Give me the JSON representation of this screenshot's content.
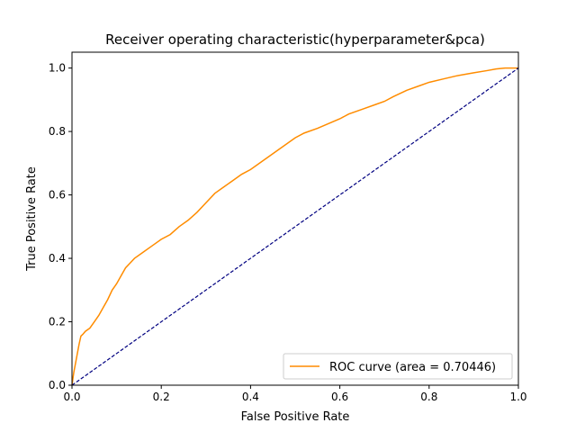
{
  "chart_data": {
    "type": "line",
    "title": "Receiver operating characteristic(hyperparameter&pca)",
    "xlabel": "False Positive Rate",
    "ylabel": "True Positive Rate",
    "xlim": [
      0.0,
      1.0
    ],
    "ylim": [
      0.0,
      1.05
    ],
    "xticks": [
      0.0,
      0.2,
      0.4,
      0.6,
      0.8,
      1.0
    ],
    "yticks": [
      0.0,
      0.2,
      0.4,
      0.6,
      0.8,
      1.0
    ],
    "xtick_labels": [
      "0.0",
      "0.2",
      "0.4",
      "0.6",
      "0.8",
      "1.0"
    ],
    "ytick_labels": [
      "0.0",
      "0.2",
      "0.4",
      "0.6",
      "0.8",
      "1.0"
    ],
    "grid": false,
    "legend_position": "lower-right",
    "series": [
      {
        "name": "ROC curve (area = 0.70446)",
        "color": "#ff8c00",
        "style": "solid",
        "x": [
          0.0,
          0.002,
          0.004,
          0.008,
          0.012,
          0.016,
          0.02,
          0.024,
          0.03,
          0.04,
          0.05,
          0.06,
          0.07,
          0.08,
          0.09,
          0.1,
          0.11,
          0.12,
          0.13,
          0.14,
          0.16,
          0.18,
          0.2,
          0.22,
          0.24,
          0.26,
          0.28,
          0.3,
          0.32,
          0.34,
          0.36,
          0.38,
          0.4,
          0.45,
          0.5,
          0.52,
          0.55,
          0.6,
          0.62,
          0.65,
          0.68,
          0.7,
          0.72,
          0.75,
          0.78,
          0.8,
          0.83,
          0.86,
          0.88,
          0.9,
          0.93,
          0.95,
          0.97,
          1.0
        ],
        "y": [
          0.0,
          0.02,
          0.04,
          0.07,
          0.1,
          0.13,
          0.155,
          0.16,
          0.17,
          0.18,
          0.2,
          0.22,
          0.245,
          0.27,
          0.3,
          0.32,
          0.345,
          0.37,
          0.385,
          0.4,
          0.42,
          0.44,
          0.46,
          0.475,
          0.5,
          0.52,
          0.545,
          0.575,
          0.605,
          0.625,
          0.645,
          0.665,
          0.68,
          0.73,
          0.78,
          0.795,
          0.81,
          0.84,
          0.855,
          0.87,
          0.885,
          0.895,
          0.91,
          0.93,
          0.945,
          0.955,
          0.965,
          0.975,
          0.98,
          0.985,
          0.992,
          0.997,
          1.0,
          1.0
        ]
      },
      {
        "name": "",
        "color": "#000080",
        "style": "dashed",
        "x": [
          0.0,
          1.0
        ],
        "y": [
          0.0,
          1.0
        ]
      }
    ]
  }
}
